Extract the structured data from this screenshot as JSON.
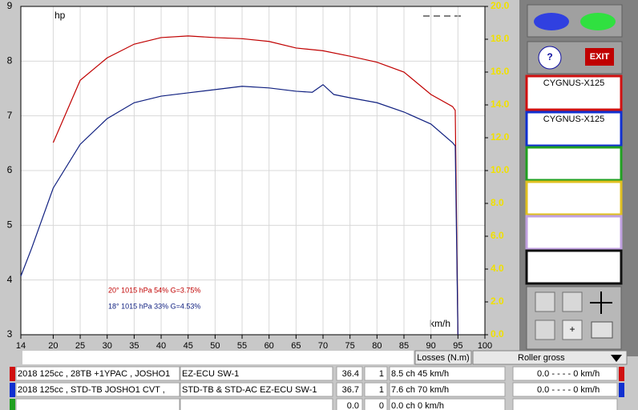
{
  "chart_data": {
    "type": "line",
    "y_label": "hp",
    "x_label": "km/h",
    "xlim": [
      14,
      100
    ],
    "xticks": [
      14,
      20,
      25,
      30,
      35,
      40,
      45,
      50,
      55,
      60,
      65,
      70,
      75,
      80,
      85,
      90,
      95,
      100
    ],
    "ylim": [
      3,
      9
    ],
    "yticks": [
      3,
      4,
      5,
      6,
      7,
      8,
      9
    ],
    "y2lim": [
      0,
      20
    ],
    "y2ticks": [
      {
        "value": 0,
        "label": "0.0"
      },
      {
        "value": 2,
        "label": "2.0"
      },
      {
        "value": 4,
        "label": "4.0"
      },
      {
        "value": 6,
        "label": "6.0"
      },
      {
        "value": 8,
        "label": "8.0"
      },
      {
        "value": 10,
        "label": "10.0"
      },
      {
        "value": 12,
        "label": "12.0"
      },
      {
        "value": 14,
        "label": "14.0"
      },
      {
        "value": 16,
        "label": "16.0"
      },
      {
        "value": 18,
        "label": "18.0"
      },
      {
        "value": 20,
        "label": "20.0"
      }
    ],
    "grid": true,
    "series": [
      {
        "name": "CYGNUS-X125",
        "color": "#c00000",
        "x": [
          20,
          25,
          30,
          35,
          40,
          45,
          50,
          55,
          60,
          65,
          70,
          75,
          80,
          85,
          90,
          94,
          94.5,
          95
        ],
        "values": [
          6.51,
          7.65,
          8.06,
          8.31,
          8.43,
          8.46,
          8.43,
          8.41,
          8.36,
          8.24,
          8.19,
          8.09,
          7.98,
          7.8,
          7.39,
          7.17,
          7.1,
          3.0
        ]
      },
      {
        "name": "CYGNUS-X125",
        "color": "#102080",
        "x": [
          14,
          16,
          20,
          25,
          30,
          35,
          40,
          45,
          50,
          55,
          60,
          65,
          68,
          70,
          72,
          75,
          80,
          85,
          90,
          94,
          94.5,
          95
        ],
        "values": [
          4.07,
          4.58,
          5.68,
          6.48,
          6.95,
          7.24,
          7.36,
          7.42,
          7.48,
          7.54,
          7.51,
          7.45,
          7.43,
          7.57,
          7.39,
          7.33,
          7.24,
          7.07,
          6.85,
          6.51,
          6.45,
          3.0
        ]
      }
    ],
    "annotations": [
      {
        "text": "20°  1015 hPa  54%    G=3.75%",
        "color": "#c00000"
      },
      {
        "text": "18°  1015 hPa  33%    G=4.53%",
        "color": "#102080"
      }
    ]
  },
  "table": {
    "losses": "Losses (N.m)",
    "roller": "Roller gross",
    "rows": [
      {
        "model": "2018 125cc , 28TB +1YPAC , JOSHO1",
        "setup": "EZ-ECU SW-1",
        "a": "36.4",
        "b": "1",
        "peak": "8.5 ch 45 km/h",
        "roller": "0.0 - - - - 0 km/h"
      },
      {
        "model": "2018 125cc , STD-TB  JOSHO1 CVT ,",
        "setup": "STD-TB & STD-AC EZ-ECU SW-1",
        "a": "36.7",
        "b": "1",
        "peak": "7.6 ch 70 km/h",
        "roller": "0.0 - - - - 0 km/h"
      },
      {
        "a": "0.0",
        "b": "0",
        "peak": "0.0 ch 0 km/h"
      }
    ]
  }
}
